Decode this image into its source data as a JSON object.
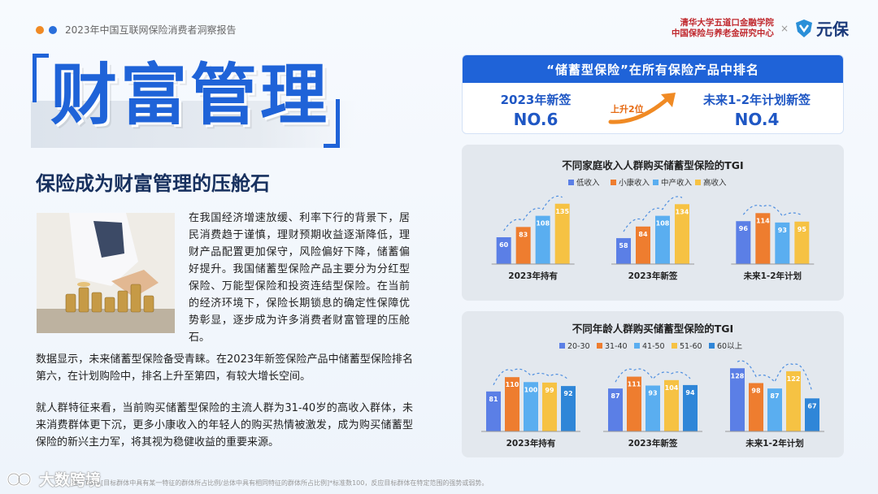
{
  "header": {
    "report_title": "2023年中国互联网保险消费者洞察报告",
    "dot_colors": [
      "#f08a24",
      "#2a6fdb"
    ],
    "partner_line1": "清华大学五道口金融学院",
    "partner_line2": "中国保险与养老金研究中心",
    "separator": "×",
    "brand_name": "元保"
  },
  "hero": {
    "title": "财富管理",
    "subtitle": "保险成为财富管理的压舱石"
  },
  "body": {
    "para1": "在我国经济增速放缓、利率下行的背景下，居民消费趋于谨慎，理财预期收益逐渐降低，理财产品配置更加保守，风险偏好下降，储蓄偏好提升。我国储蓄型保险产品主要分为分红型保险、万能型保险和投资连结型保险。在当前的经济环境下，保险长期锁息的确定性保障优势彰显，逐步成为许多消费者财富管理的压舱石。",
    "para2": "数据显示，未来储蓄型保险备受青睐。在2023年新签保险产品中储蓄型保险排名第六，在计划购险中，排名上升至第四，有较大增长空间。",
    "para3": "就人群特征来看，当前购买储蓄型保险的主流人群为31-40岁的高收入群体，未来消费群体更下沉，更多小康收入的年轻人的购买热情被激发，成为购买储蓄型保险的新兴主力军，将其视为稳健收益的重要来源。"
  },
  "rank": {
    "heading": "“储蓄型保险”在所有保险产品中排名",
    "left_label": "2023年新签",
    "left_value": "NO.6",
    "change_label": "上升2位",
    "right_label": "未来1-2年计划新签",
    "right_value": "NO.4"
  },
  "colors": {
    "accent": "#1f63d8",
    "series_income": [
      "#5b7fe6",
      "#ee7d2f",
      "#5aaef0",
      "#f6c243"
    ],
    "series_age": [
      "#5b7fe6",
      "#ee7d2f",
      "#5aaef0",
      "#f6c243",
      "#2f86d8"
    ]
  },
  "chart_data": [
    {
      "type": "bar",
      "title": "不同家庭收入人群购买储蓄型保险的TGI",
      "categories": [
        "2023年持有",
        "2023年新签",
        "未来1-2年计划"
      ],
      "series": [
        {
          "name": "低收入",
          "values": [
            60,
            58,
            96
          ]
        },
        {
          "name": "小康收入",
          "values": [
            83,
            84,
            114
          ]
        },
        {
          "name": "中产收入",
          "values": [
            108,
            108,
            93
          ]
        },
        {
          "name": "高收入",
          "values": [
            135,
            134,
            95
          ]
        }
      ],
      "ylim": [
        0,
        140
      ],
      "legend": "top",
      "grid": false
    },
    {
      "type": "bar",
      "title": "不同年龄人群购买储蓄型保险的TGI",
      "categories": [
        "2023年持有",
        "2023年新签",
        "未来1-2年计划"
      ],
      "series": [
        {
          "name": "20-30",
          "values": [
            81,
            87,
            128
          ]
        },
        {
          "name": "31-40",
          "values": [
            110,
            111,
            98
          ]
        },
        {
          "name": "41-50",
          "values": [
            100,
            93,
            87
          ]
        },
        {
          "name": "51-60",
          "values": [
            99,
            104,
            122
          ]
        },
        {
          "name": "60以上",
          "values": [
            92,
            94,
            67
          ]
        }
      ],
      "ylim": [
        0,
        135
      ],
      "legend": "top",
      "grid": false
    }
  ],
  "footer": {
    "watermark": "大数跨境",
    "note": "注：TGI=[目标群体中具有某一特征的群体所占比例/总体中具有相同特征的群体所占比例]*标准数100，反应目标群体在特定范围的强势或弱势。"
  }
}
